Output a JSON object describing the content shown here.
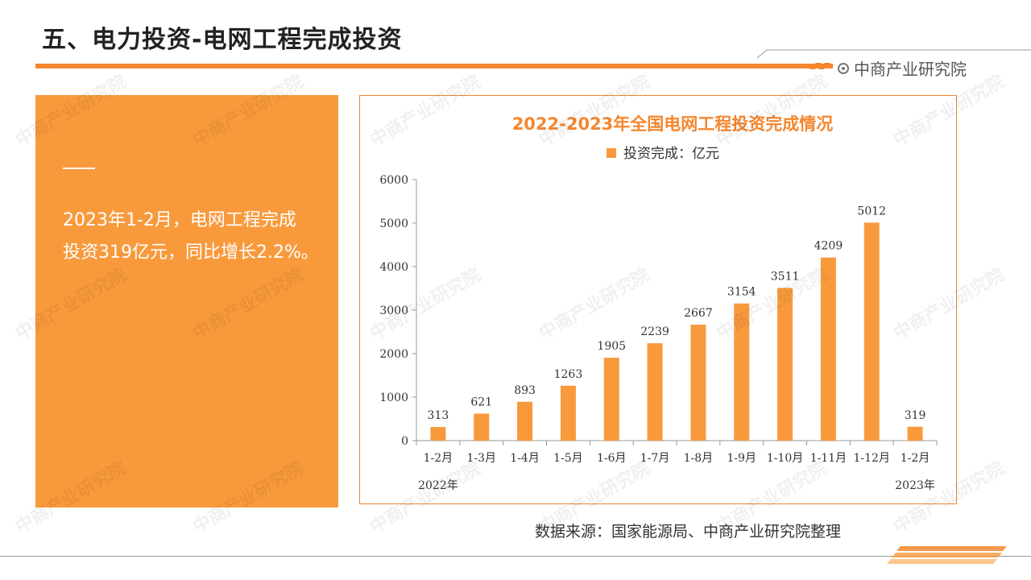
{
  "header": {
    "title": "五、电力投资-电网工程完成投资",
    "brand": "中商产业研究院"
  },
  "summary": {
    "line1": "2023年1-2月，电网工程完成",
    "line2": "投资319亿元，同比增长2.2%。"
  },
  "source": "数据来源：国家能源局、中商产业研究院整理",
  "watermark": "中商产业研究院",
  "colors": {
    "accent": "#f5862e",
    "panel": "#f89a3c",
    "bar": "#f89a3c",
    "title": "#f5862e"
  },
  "chart_data": {
    "type": "bar",
    "title": "2022-2023年全国电网工程投资完成情况",
    "legend": "投资完成：亿元",
    "legend_position": "top",
    "categories": [
      "1-2月",
      "1-3月",
      "1-4月",
      "1-5月",
      "1-6月",
      "1-7月",
      "1-8月",
      "1-9月",
      "1-10月",
      "1-11月",
      "1-12月",
      "1-2月"
    ],
    "values": [
      313,
      621,
      893,
      1263,
      1905,
      2239,
      2667,
      3154,
      3511,
      4209,
      5012,
      319
    ],
    "year_labels": [
      "2022年",
      "2023年"
    ],
    "yticks": [
      0,
      1000,
      2000,
      3000,
      4000,
      5000,
      6000
    ],
    "ylim": [
      0,
      6000
    ],
    "grid": false
  }
}
